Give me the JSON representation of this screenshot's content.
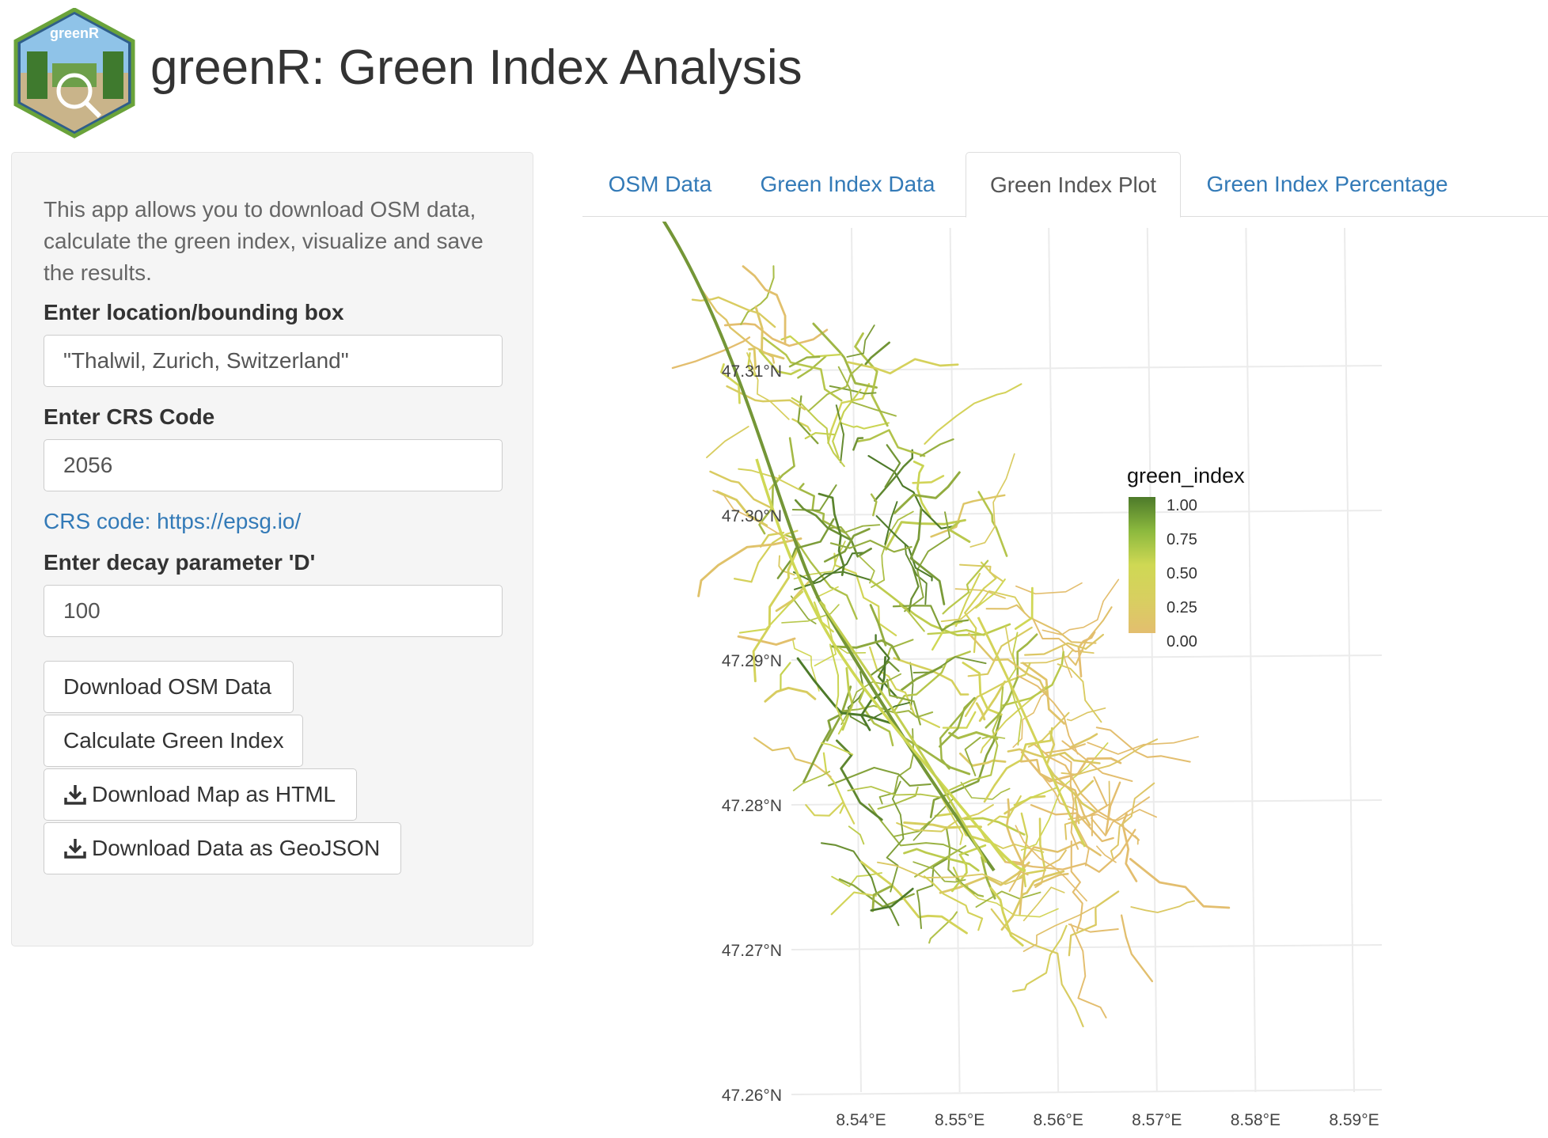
{
  "app": {
    "title": "greenR: Green Index Analysis",
    "logo_text": "greenR"
  },
  "sidebar": {
    "intro": "This app allows you to download OSM data, calculate the green index, visualize and save the results.",
    "location_label": "Enter location/bounding box",
    "location_value": "\"Thalwil, Zurich, Switzerland\"",
    "crs_label": "Enter CRS Code",
    "crs_value": "2056",
    "crs_link": "CRS code: https://epsg.io/",
    "decay_label": "Enter decay parameter 'D'",
    "decay_value": "100",
    "buttons": {
      "download_osm": "Download OSM Data",
      "calculate": "Calculate Green Index",
      "download_html": "Download Map as HTML",
      "download_geojson": "Download Data as GeoJSON"
    },
    "icons": {
      "download": "download-icon"
    }
  },
  "tabs": [
    {
      "label": "OSM Data",
      "active": false
    },
    {
      "label": "Green Index Data",
      "active": false
    },
    {
      "label": "Green Index Plot",
      "active": true
    },
    {
      "label": "Green Index Percentage",
      "active": false
    }
  ],
  "chart_data": {
    "type": "map",
    "x_ticks": [
      "8.54°E",
      "8.55°E",
      "8.56°E",
      "8.57°E",
      "8.58°E",
      "8.59°E"
    ],
    "y_ticks": [
      "47.31°N",
      "47.30°N",
      "47.29°N",
      "47.28°N",
      "47.27°N",
      "47.26°N"
    ],
    "xlim": [
      8.53,
      8.595
    ],
    "ylim": [
      47.26,
      47.318
    ],
    "legend": {
      "title": "green_index",
      "ticks": [
        "1.00",
        "0.75",
        "0.50",
        "0.25",
        "0.00"
      ],
      "colors": [
        "#4d7a2a",
        "#8cb93e",
        "#cfd854",
        "#d8cf60",
        "#e3be6f"
      ]
    },
    "grid": true,
    "colors": {
      "low": "#e3be6f",
      "mid": "#cfd854",
      "high": "#4d7a2a"
    }
  }
}
